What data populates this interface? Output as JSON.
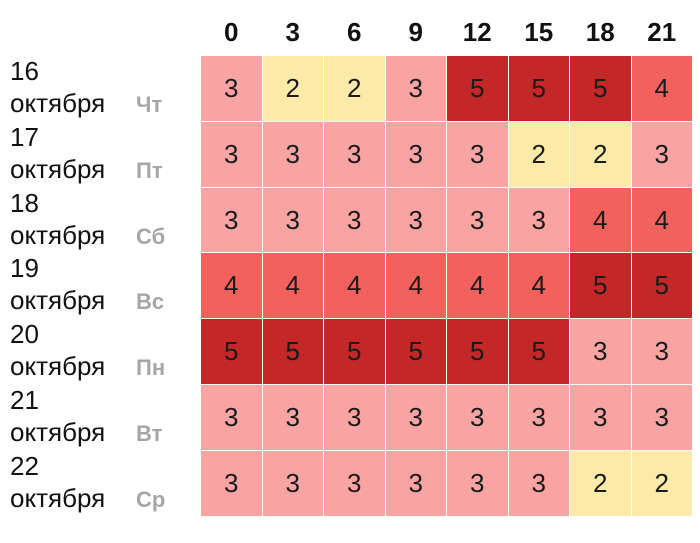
{
  "chart_data": {
    "type": "heatmap",
    "x": [
      "0",
      "3",
      "6",
      "9",
      "12",
      "15",
      "18",
      "21"
    ],
    "rows": [
      {
        "day": "16",
        "month": "октября",
        "weekday": "Чт",
        "values": [
          3,
          2,
          2,
          3,
          5,
          5,
          5,
          4
        ]
      },
      {
        "day": "17",
        "month": "октября",
        "weekday": "Пт",
        "values": [
          3,
          3,
          3,
          3,
          3,
          2,
          2,
          3
        ]
      },
      {
        "day": "18",
        "month": "октября",
        "weekday": "Сб",
        "values": [
          3,
          3,
          3,
          3,
          3,
          3,
          4,
          4
        ]
      },
      {
        "day": "19",
        "month": "октября",
        "weekday": "Вс",
        "values": [
          4,
          4,
          4,
          4,
          4,
          4,
          5,
          5
        ]
      },
      {
        "day": "20",
        "month": "октября",
        "weekday": "Пн",
        "values": [
          5,
          5,
          5,
          5,
          5,
          5,
          3,
          3
        ]
      },
      {
        "day": "21",
        "month": "октября",
        "weekday": "Вт",
        "values": [
          3,
          3,
          3,
          3,
          3,
          3,
          3,
          3
        ]
      },
      {
        "day": "22",
        "month": "октября",
        "weekday": "Ср",
        "values": [
          3,
          3,
          3,
          3,
          3,
          3,
          2,
          2
        ]
      }
    ],
    "color_scale": {
      "2": "#fde9a8",
      "3": "#f9a3a3",
      "4": "#f2615c",
      "5": "#c42727"
    },
    "grid_line_color": "#ffffff",
    "weekday_color": "#a6a6a6"
  }
}
